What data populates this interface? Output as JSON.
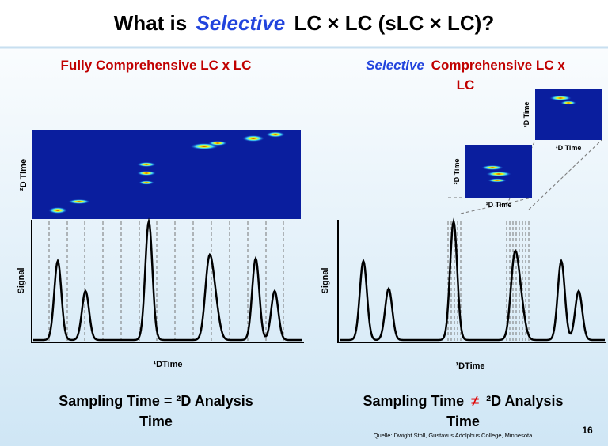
{
  "title": {
    "prefix": "What is",
    "emphasis": "Selective",
    "suffix": "LC × LC (sLC × LC)?"
  },
  "left": {
    "heading": "Fully Comprehensive LC x LC",
    "heatmap_y_label": "²D Time",
    "signal_label": "Signal",
    "x_label": "¹DTime",
    "caption_lines": [
      "Sampling Time = ²D Analysis",
      "Time"
    ]
  },
  "right": {
    "heading_emphasis": "Selective",
    "heading_lines": [
      "Comprehensive LC x",
      "LC"
    ],
    "inset_y_labels": [
      "²D Time",
      "²D Time"
    ],
    "inset_x_labels": [
      "¹D Time",
      "¹D Time"
    ],
    "signal_label": "Signal",
    "x_label": "¹DTime",
    "caption_prefix": "Sampling Time",
    "caption_symbol": "≠",
    "caption_suffix": "²D Analysis",
    "caption_last_line": "Time"
  },
  "footer": {
    "source": "Quelle: Dwight Stoll, Gustavus Adolphus College, Minnesota",
    "page": "16"
  }
}
